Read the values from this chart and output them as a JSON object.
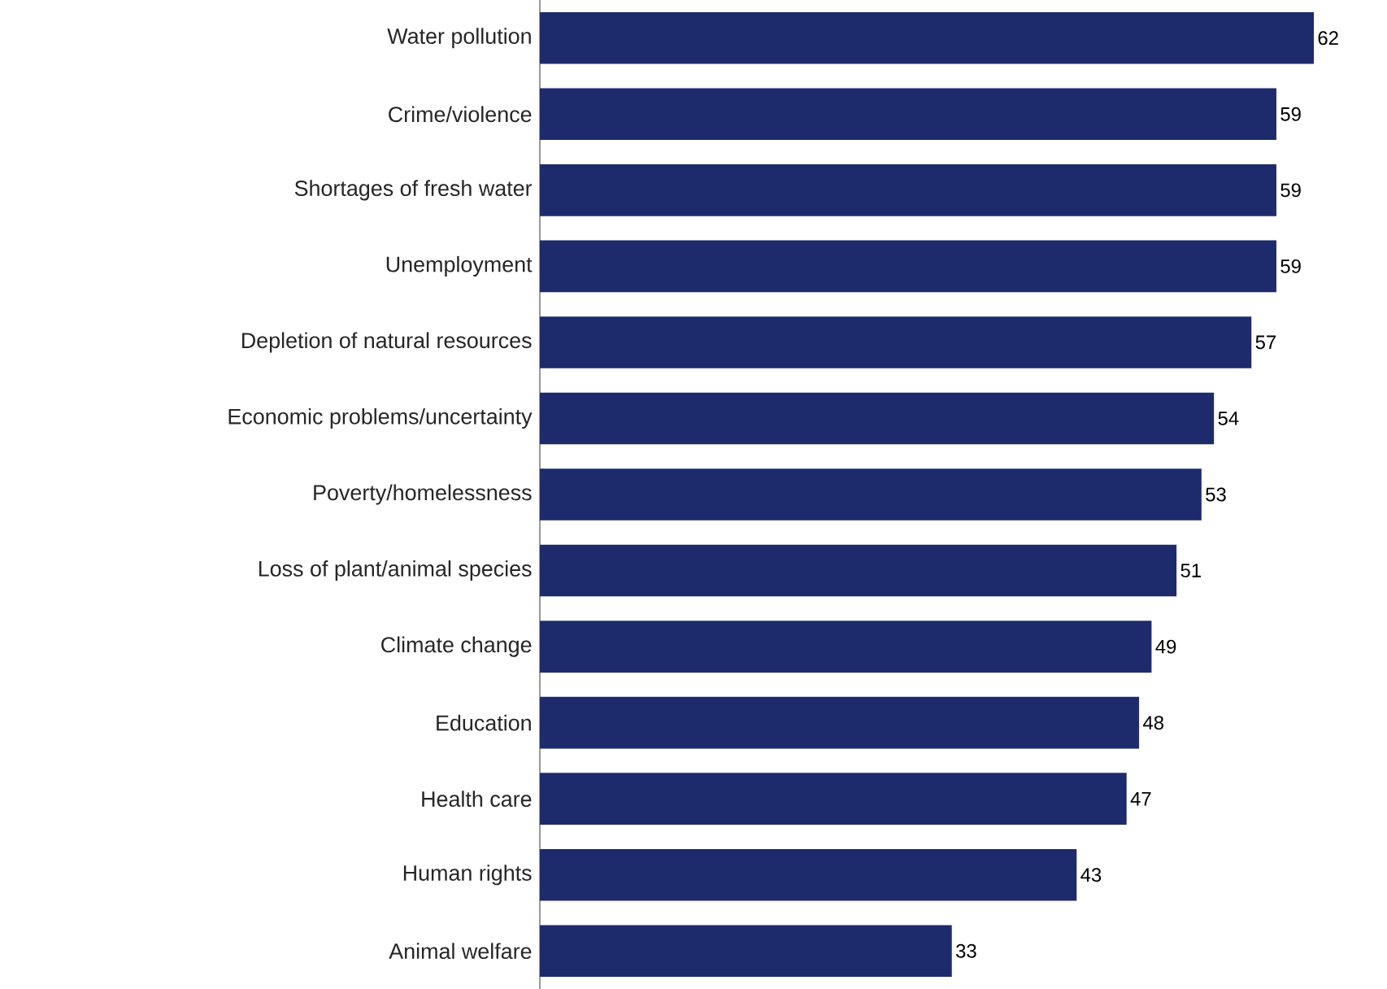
{
  "chart_data": {
    "type": "bar",
    "orientation": "horizontal",
    "categories": [
      "Water pollution",
      "Crime/violence",
      "Shortages of fresh water",
      "Unemployment",
      "Depletion of natural resources",
      "Economic problems/uncertainty",
      "Poverty/homelessness",
      "Loss of plant/animal species",
      "Climate change",
      "Education",
      "Health care",
      "Human rights",
      "Animal welfare"
    ],
    "values": [
      62,
      59,
      59,
      59,
      57,
      54,
      53,
      51,
      49,
      48,
      47,
      43,
      33
    ],
    "color": "#1d2a6b",
    "data_labels": true
  }
}
